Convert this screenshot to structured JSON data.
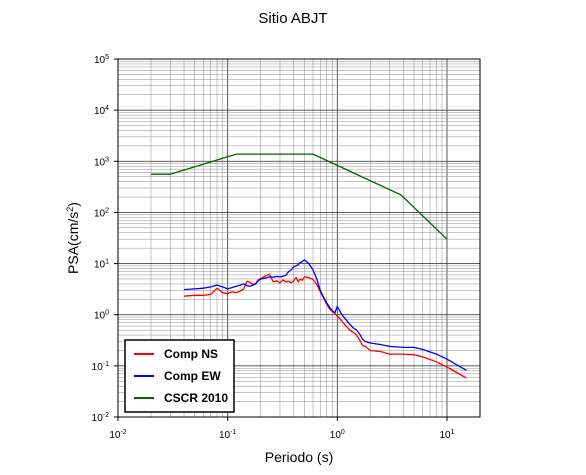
{
  "chart_data": {
    "type": "line",
    "title": "Sitio ABJT",
    "xlabel": "Periodo (s)",
    "ylabel": "PSA(cm/s",
    "ylabel_sup": "2",
    "ylabel_suffix": ")",
    "xscale": "log",
    "yscale": "log",
    "xlim": [
      0.01,
      20
    ],
    "ylim": [
      0.01,
      100000
    ],
    "grid": true,
    "legend_position": "bottom-left",
    "x_ticks": [
      {
        "base": "10",
        "exp": "-2"
      },
      {
        "base": "10",
        "exp": "-1"
      },
      {
        "base": "10",
        "exp": "0"
      },
      {
        "base": "10",
        "exp": "1"
      }
    ],
    "y_ticks": [
      {
        "base": "10",
        "exp": "-2"
      },
      {
        "base": "10",
        "exp": "-1"
      },
      {
        "base": "10",
        "exp": "0"
      },
      {
        "base": "10",
        "exp": "1"
      },
      {
        "base": "10",
        "exp": "2"
      },
      {
        "base": "10",
        "exp": "3"
      },
      {
        "base": "10",
        "exp": "4"
      },
      {
        "base": "10",
        "exp": "5"
      }
    ],
    "series": [
      {
        "name": "Comp NS",
        "color": "#ff0000",
        "x": [
          0.04,
          0.05,
          0.06,
          0.07,
          0.08,
          0.09,
          0.1,
          0.11,
          0.12,
          0.13,
          0.14,
          0.15,
          0.16,
          0.17,
          0.18,
          0.19,
          0.2,
          0.22,
          0.24,
          0.26,
          0.28,
          0.3,
          0.32,
          0.34,
          0.36,
          0.38,
          0.4,
          0.42,
          0.44,
          0.46,
          0.48,
          0.5,
          0.55,
          0.6,
          0.65,
          0.7,
          0.75,
          0.8,
          0.85,
          0.9,
          0.95,
          1.0,
          1.1,
          1.2,
          1.3,
          1.4,
          1.5,
          1.6,
          1.7,
          1.8,
          2.0,
          2.5,
          3.0,
          4.0,
          5.0,
          6.0,
          8.0,
          10.0,
          15.0
        ],
        "y": [
          2.3,
          2.4,
          2.4,
          2.5,
          3.3,
          2.7,
          2.6,
          2.8,
          2.7,
          2.9,
          3.2,
          4.5,
          4.3,
          3.9,
          4.1,
          4.8,
          5.1,
          5.7,
          6.2,
          4.4,
          4.6,
          4.2,
          4.8,
          4.4,
          4.5,
          4.2,
          4.6,
          5.4,
          4.4,
          5.0,
          4.7,
          5.5,
          5.3,
          4.9,
          3.9,
          2.8,
          2.1,
          1.6,
          1.3,
          1.15,
          1.05,
          0.95,
          0.75,
          0.6,
          0.5,
          0.45,
          0.4,
          0.32,
          0.25,
          0.24,
          0.2,
          0.19,
          0.17,
          0.17,
          0.165,
          0.15,
          0.12,
          0.095,
          0.058
        ]
      },
      {
        "name": "Comp EW",
        "color": "#0000ff",
        "x": [
          0.04,
          0.05,
          0.06,
          0.07,
          0.08,
          0.09,
          0.1,
          0.11,
          0.12,
          0.13,
          0.14,
          0.15,
          0.16,
          0.17,
          0.18,
          0.19,
          0.2,
          0.22,
          0.24,
          0.26,
          0.28,
          0.3,
          0.32,
          0.34,
          0.36,
          0.38,
          0.4,
          0.42,
          0.44,
          0.46,
          0.48,
          0.5,
          0.55,
          0.6,
          0.65,
          0.7,
          0.75,
          0.8,
          0.85,
          0.9,
          0.95,
          1.0,
          1.1,
          1.2,
          1.3,
          1.4,
          1.5,
          1.6,
          1.7,
          1.8,
          2.0,
          2.5,
          3.0,
          4.0,
          5.0,
          6.0,
          8.0,
          10.0,
          15.0
        ],
        "y": [
          3.1,
          3.2,
          3.3,
          3.5,
          3.8,
          3.5,
          3.2,
          3.4,
          3.6,
          3.8,
          4.0,
          3.7,
          3.6,
          3.8,
          4.0,
          4.6,
          5.0,
          5.2,
          5.5,
          5.4,
          5.6,
          5.5,
          5.7,
          5.9,
          7.0,
          7.5,
          8.6,
          9.0,
          9.5,
          10.5,
          11.0,
          11.8,
          10.0,
          7.5,
          5.0,
          3.0,
          2.2,
          1.7,
          1.4,
          1.2,
          1.1,
          1.45,
          1.0,
          0.8,
          0.65,
          0.55,
          0.5,
          0.42,
          0.33,
          0.3,
          0.28,
          0.26,
          0.24,
          0.23,
          0.23,
          0.21,
          0.17,
          0.135,
          0.082
        ]
      },
      {
        "name": "CSCR 2010",
        "color": "#006600",
        "x": [
          0.02,
          0.03,
          0.12,
          0.6,
          3.8,
          10.0
        ],
        "y": [
          560,
          560,
          1380,
          1380,
          220,
          30
        ]
      }
    ]
  }
}
